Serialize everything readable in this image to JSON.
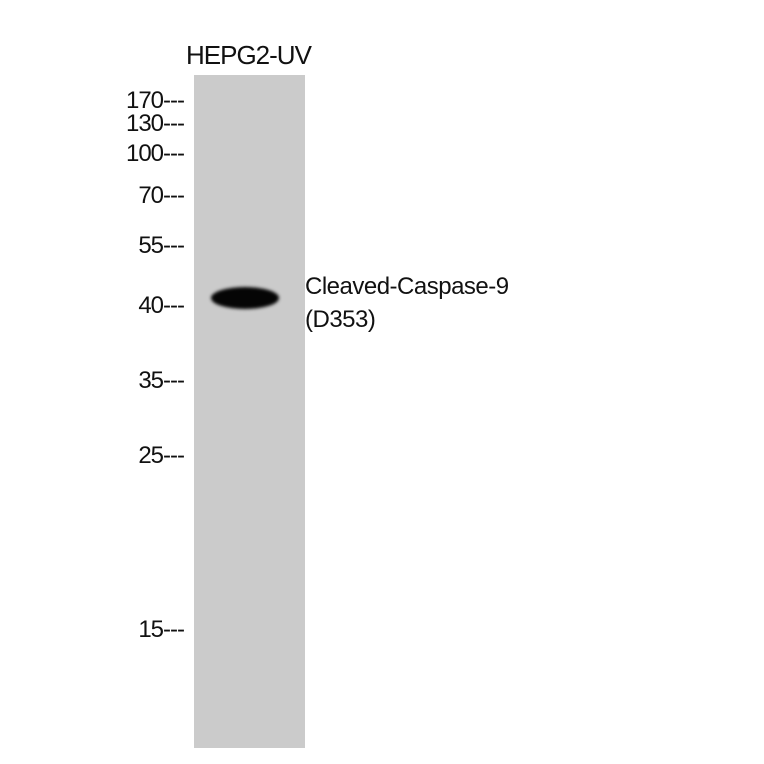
{
  "lane_label": "HEPG2-UV",
  "markers": [
    "170",
    "130",
    "100",
    "70",
    "55",
    "40",
    "35",
    "25",
    "15"
  ],
  "marker_dash": "---",
  "target": {
    "line1": "Cleaved-Caspase-9",
    "line2": "(D353)"
  },
  "colors": {
    "lane": "#cbcbcb",
    "band": "#050505"
  }
}
